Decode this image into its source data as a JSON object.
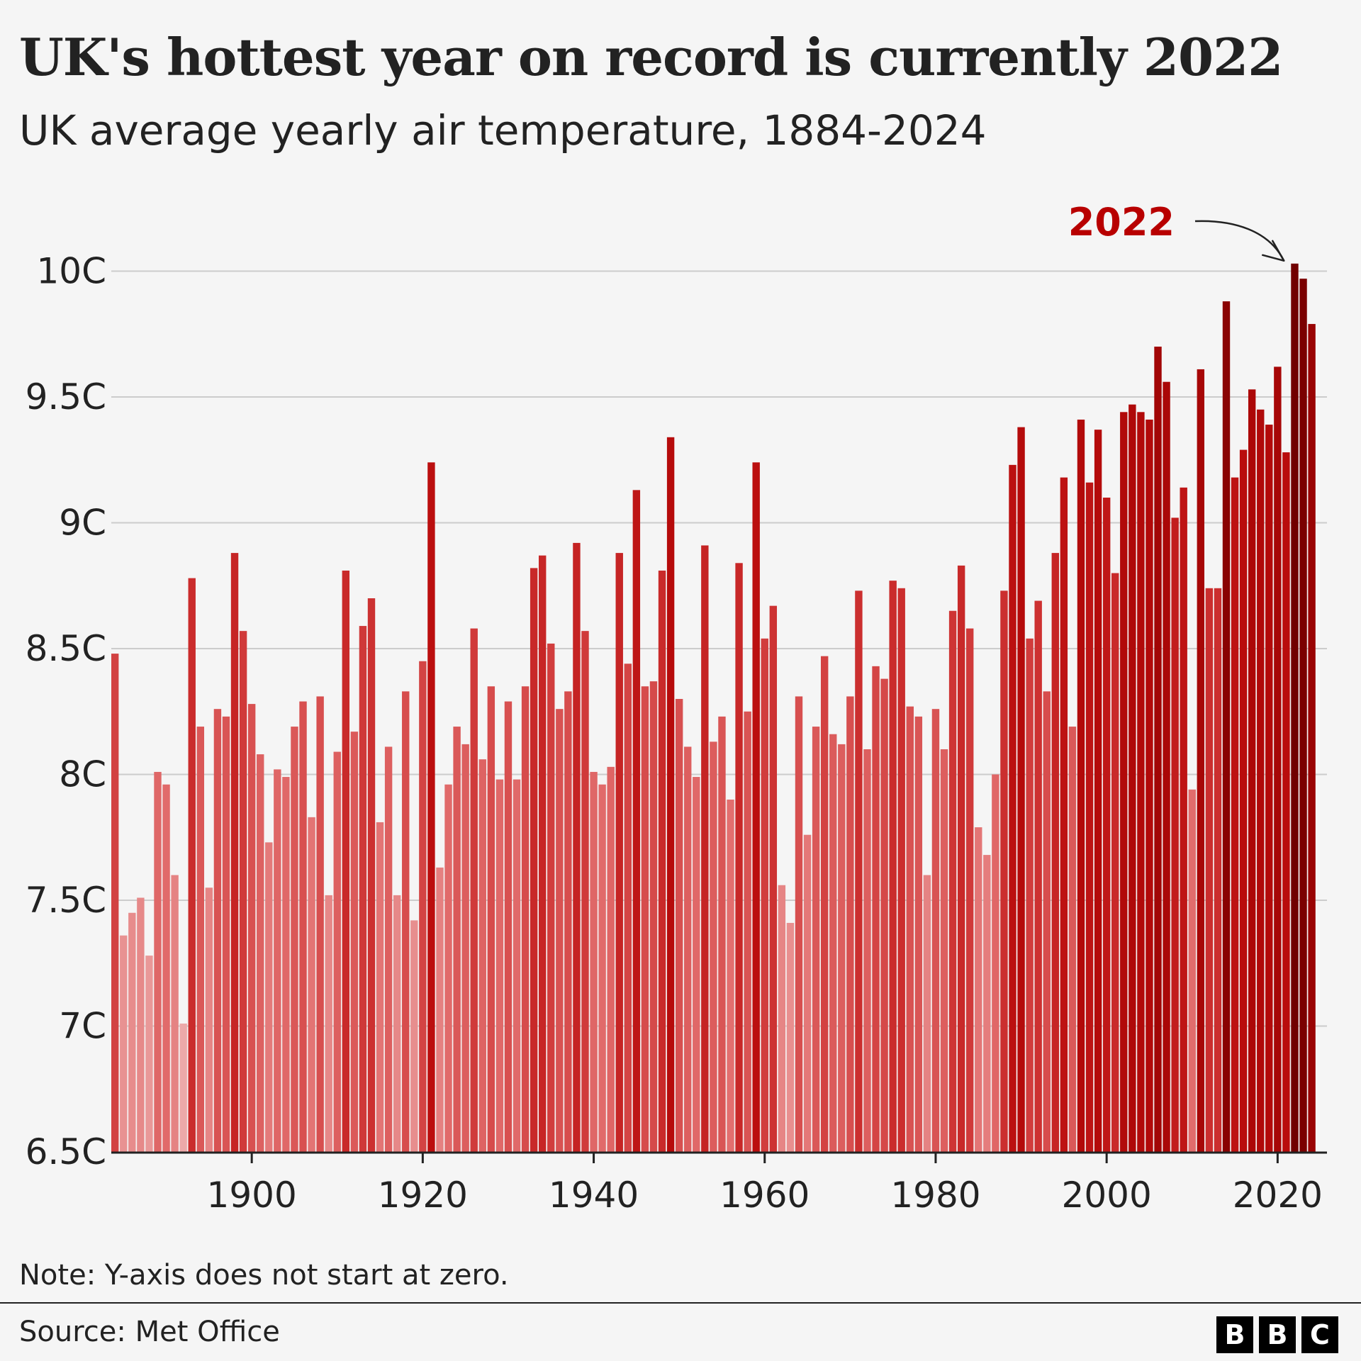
{
  "header": {
    "title": "UK's hottest year on record is currently 2022",
    "subtitle": "UK average yearly air temperature, 1884-2024"
  },
  "footer": {
    "note": "Note: Y-axis does not start at zero.",
    "source": "Source: Met Office",
    "logo_letters": [
      "B",
      "B",
      "C"
    ]
  },
  "colors": {
    "background": "#f5f5f5",
    "text": "#222222",
    "highlight": "#b80000",
    "arrow": "#222222"
  },
  "chart_data": {
    "type": "bar",
    "title": "UK's hottest year on record is currently 2022",
    "subtitle": "UK average yearly air temperature, 1884-2024",
    "xlabel": "",
    "ylabel": "",
    "x_start": 1884,
    "x_end": 2024,
    "ylim": [
      6.5,
      10.2
    ],
    "y_ticks": [
      6.5,
      7,
      7.5,
      8,
      8.5,
      9,
      9.5,
      10
    ],
    "y_tick_labels": [
      "6.5C",
      "7C",
      "7.5C",
      "8C",
      "8.5C",
      "9C",
      "9.5C",
      "10C"
    ],
    "x_ticks": [
      1900,
      1920,
      1940,
      1960,
      1980,
      2000,
      2020
    ],
    "x_tick_labels": [
      "1900",
      "1920",
      "1940",
      "1960",
      "1980",
      "2000",
      "2020"
    ],
    "grid": true,
    "annotation": {
      "year": 2022,
      "label": "2022"
    },
    "years": [
      1884,
      1885,
      1886,
      1887,
      1888,
      1889,
      1890,
      1891,
      1892,
      1893,
      1894,
      1895,
      1896,
      1897,
      1898,
      1899,
      1900,
      1901,
      1902,
      1903,
      1904,
      1905,
      1906,
      1907,
      1908,
      1909,
      1910,
      1911,
      1912,
      1913,
      1914,
      1915,
      1916,
      1917,
      1918,
      1919,
      1920,
      1921,
      1922,
      1923,
      1924,
      1925,
      1926,
      1927,
      1928,
      1929,
      1930,
      1931,
      1932,
      1933,
      1934,
      1935,
      1936,
      1937,
      1938,
      1939,
      1940,
      1941,
      1942,
      1943,
      1944,
      1945,
      1946,
      1947,
      1948,
      1949,
      1950,
      1951,
      1952,
      1953,
      1954,
      1955,
      1956,
      1957,
      1958,
      1959,
      1960,
      1961,
      1962,
      1963,
      1964,
      1965,
      1966,
      1967,
      1968,
      1969,
      1970,
      1971,
      1972,
      1973,
      1974,
      1975,
      1976,
      1977,
      1978,
      1979,
      1980,
      1981,
      1982,
      1983,
      1984,
      1985,
      1986,
      1987,
      1988,
      1989,
      1990,
      1991,
      1992,
      1993,
      1994,
      1995,
      1996,
      1997,
      1998,
      1999,
      2000,
      2001,
      2002,
      2003,
      2004,
      2005,
      2006,
      2007,
      2008,
      2009,
      2010,
      2011,
      2012,
      2013,
      2014,
      2015,
      2016,
      2017,
      2018,
      2019,
      2020,
      2021,
      2022,
      2023,
      2024
    ],
    "values": [
      8.48,
      7.36,
      7.45,
      7.51,
      7.28,
      8.01,
      7.96,
      7.6,
      7.01,
      8.78,
      8.19,
      7.55,
      8.26,
      8.23,
      8.88,
      8.57,
      8.28,
      8.08,
      7.73,
      8.02,
      7.99,
      8.19,
      8.29,
      7.83,
      8.31,
      7.52,
      8.09,
      8.81,
      8.17,
      8.59,
      8.7,
      7.81,
      8.11,
      7.52,
      8.33,
      7.42,
      8.45,
      9.24,
      7.63,
      7.96,
      8.19,
      8.12,
      8.58,
      8.06,
      8.35,
      7.98,
      8.29,
      7.98,
      8.35,
      8.82,
      8.87,
      8.52,
      8.26,
      8.33,
      8.92,
      8.57,
      8.01,
      7.96,
      8.03,
      8.88,
      8.44,
      9.13,
      8.35,
      8.37,
      8.81,
      9.34,
      8.3,
      8.11,
      7.99,
      8.91,
      8.13,
      8.23,
      7.9,
      8.84,
      8.25,
      9.24,
      8.54,
      8.67,
      7.56,
      7.41,
      8.31,
      7.76,
      8.19,
      8.47,
      8.16,
      8.12,
      8.31,
      8.73,
      8.1,
      8.43,
      8.38,
      8.77,
      8.74,
      8.27,
      8.23,
      7.6,
      8.26,
      8.1,
      8.65,
      8.83,
      8.58,
      7.79,
      7.68,
      8.0,
      8.73,
      9.23,
      9.38,
      8.54,
      8.69,
      8.33,
      8.88,
      9.18,
      8.19,
      9.41,
      9.16,
      9.37,
      9.1,
      8.8,
      9.44,
      9.47,
      9.44,
      9.41,
      9.7,
      9.56,
      9.02,
      9.14,
      7.94,
      9.61,
      8.74,
      8.74,
      9.88,
      9.18,
      9.29,
      9.53,
      9.45,
      9.39,
      9.62,
      9.28,
      10.03,
      9.97,
      9.79
    ]
  }
}
